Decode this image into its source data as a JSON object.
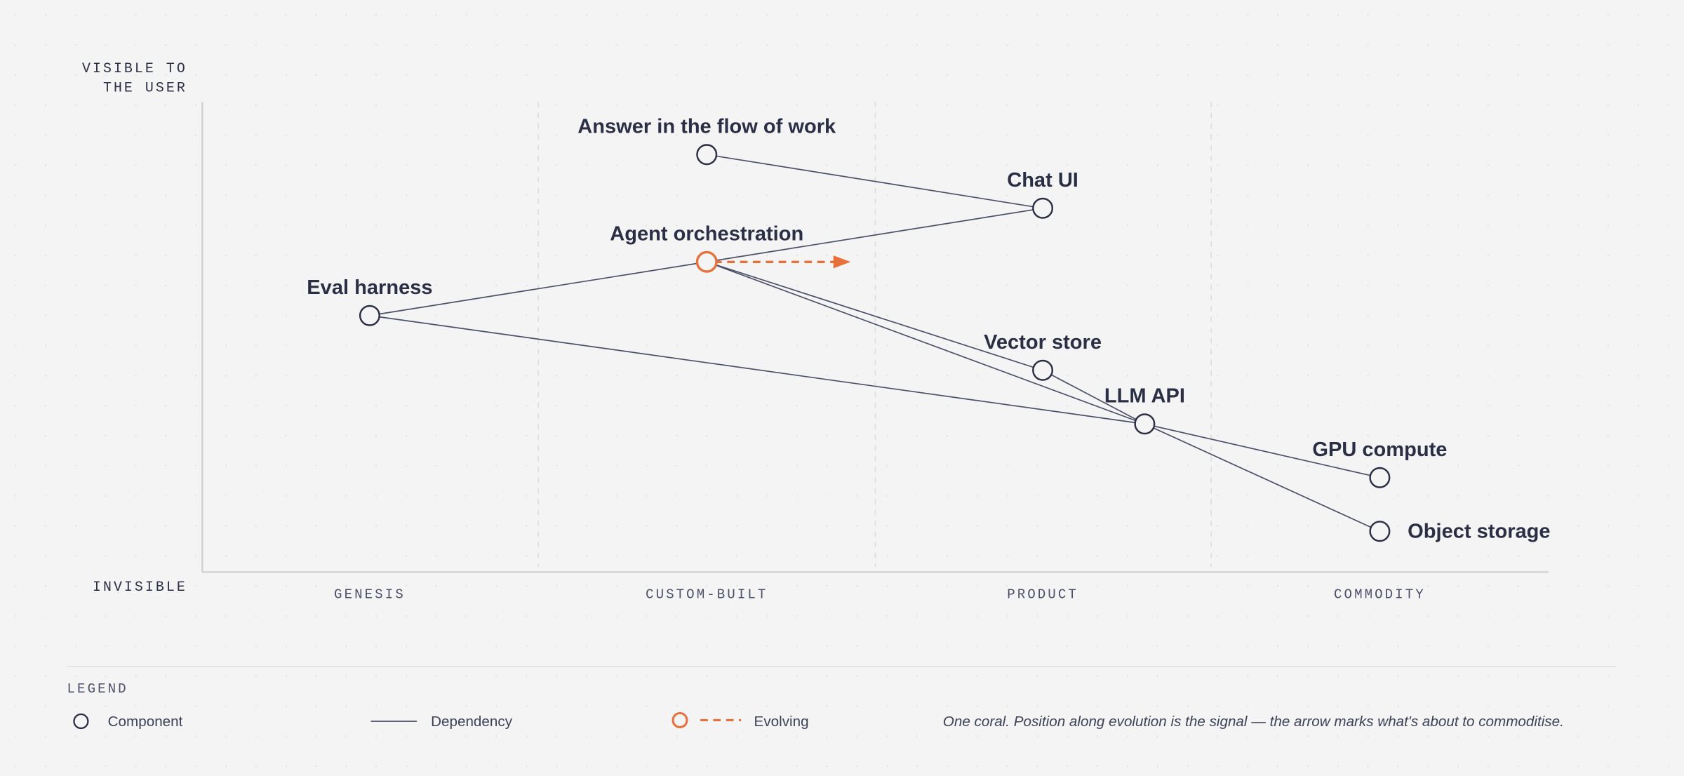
{
  "axes": {
    "y_top": [
      "VISIBLE TO",
      "THE USER"
    ],
    "y_bottom": "INVISIBLE",
    "stages": [
      "GENESIS",
      "CUSTOM-BUILT",
      "PRODUCT",
      "COMMODITY"
    ]
  },
  "nodes": [
    {
      "label": "Answer in the flow of work"
    },
    {
      "label": "Chat UI"
    },
    {
      "label": "Agent orchestration",
      "evolving": true
    },
    {
      "label": "Eval harness"
    },
    {
      "label": "Vector store"
    },
    {
      "label": "LLM API"
    },
    {
      "label": "GPU compute"
    },
    {
      "label": "Object storage"
    }
  ],
  "edges": [
    [
      0,
      1
    ],
    [
      2,
      1
    ],
    [
      3,
      2
    ],
    [
      3,
      5
    ],
    [
      2,
      4
    ],
    [
      2,
      5
    ],
    [
      4,
      5
    ],
    [
      5,
      6
    ],
    [
      5,
      7
    ]
  ],
  "legend": {
    "title": "LEGEND",
    "items": [
      "Component",
      "Dependency",
      "Evolving"
    ],
    "note": "One coral. Position along evolution is the signal — the arrow marks what's about to commoditise."
  }
}
